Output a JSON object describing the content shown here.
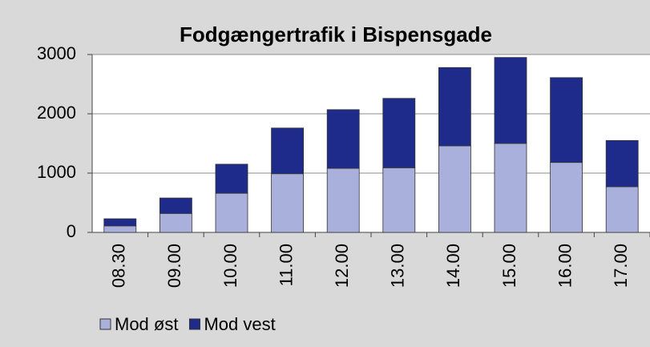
{
  "chart_data": {
    "type": "stacked_bar",
    "title": "Fodgængertrafik i Bispensgade",
    "categories": [
      "08.30",
      "09.00",
      "10.00",
      "11.00",
      "12.00",
      "13.00",
      "14.00",
      "15.00",
      "16.00",
      "17.00"
    ],
    "series": [
      {
        "name": "Mod øst",
        "color": "#aab0dc",
        "values": [
          110,
          320,
          660,
          990,
          1080,
          1090,
          1460,
          1500,
          1180,
          770
        ]
      },
      {
        "name": "Mod vest",
        "color": "#1f2b8a",
        "values": [
          120,
          260,
          490,
          770,
          990,
          1170,
          1320,
          1450,
          1430,
          780
        ]
      }
    ],
    "ylim": [
      0,
      3000
    ],
    "yticks": [
      0,
      1000,
      2000,
      3000
    ],
    "grid": true,
    "legend": "bottom"
  }
}
